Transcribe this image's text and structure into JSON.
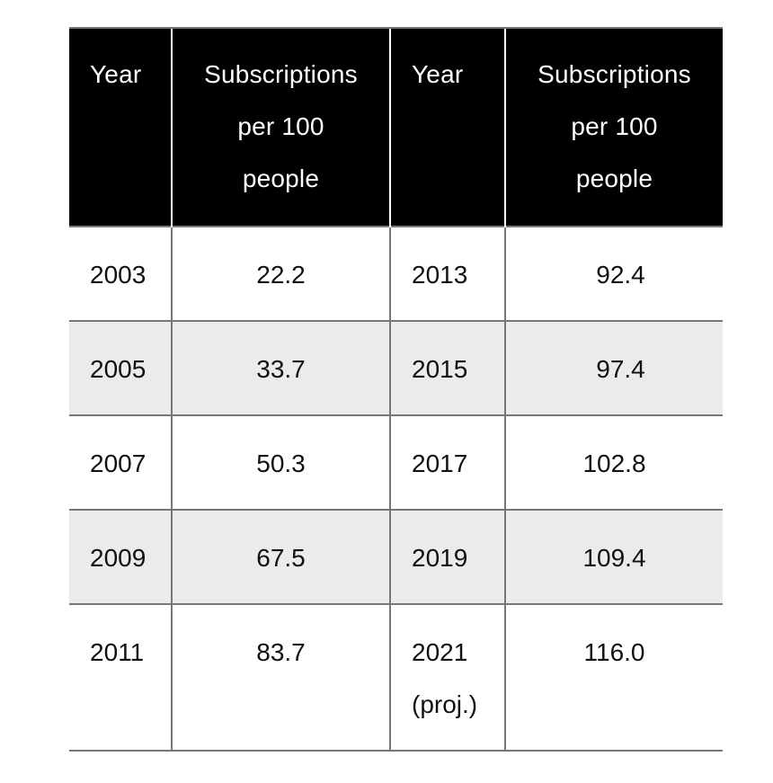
{
  "chart_data": {
    "type": "table",
    "columns": [
      "Year",
      "Subscriptions per 100 people",
      "Year",
      "Subscriptions per 100 people"
    ],
    "header_lines": {
      "year": "Year",
      "subs_line1": "Subscriptions",
      "subs_line2": "per 100",
      "subs_line3": "people"
    },
    "rows": [
      {
        "year_a": "2003",
        "value_a": "22.2",
        "year_b": "2013",
        "year_b_note": "",
        "value_b": "92.4"
      },
      {
        "year_a": "2005",
        "value_a": "33.7",
        "year_b": "2015",
        "year_b_note": "",
        "value_b": "97.4"
      },
      {
        "year_a": "2007",
        "value_a": "50.3",
        "year_b": "2017",
        "year_b_note": "",
        "value_b": "102.8"
      },
      {
        "year_a": "2009",
        "value_a": "67.5",
        "year_b": "2019",
        "year_b_note": "",
        "value_b": "109.4"
      },
      {
        "year_a": "2011",
        "value_a": "83.7",
        "year_b": "2021",
        "year_b_note": "(proj.)",
        "value_b": "116.0"
      }
    ],
    "series": [
      {
        "name": "Subscriptions per 100 people",
        "x": [
          2003,
          2005,
          2007,
          2009,
          2011,
          2013,
          2015,
          2017,
          2019,
          2021
        ],
        "values": [
          22.2,
          33.7,
          50.3,
          67.5,
          83.7,
          92.4,
          97.4,
          102.8,
          109.4,
          116.0
        ]
      }
    ],
    "colors": {
      "header_bg": "#000000",
      "header_text": "#ffffff",
      "row_shade": "#ebebeb",
      "rule": "#777777"
    }
  }
}
